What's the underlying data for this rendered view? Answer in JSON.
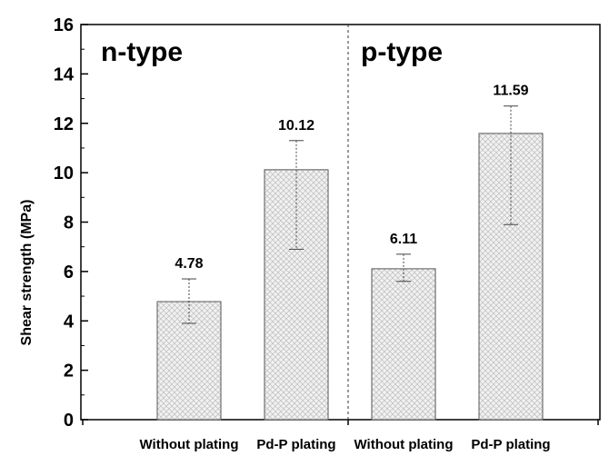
{
  "chart_data": {
    "type": "bar",
    "title": "",
    "xlabel": "",
    "ylabel": "Shear strength (MPa)",
    "ylim": [
      0,
      16
    ],
    "yticks": [
      0,
      2,
      4,
      6,
      8,
      10,
      12,
      14,
      16
    ],
    "grid": false,
    "legend": "none",
    "categories": [
      "Without plating",
      "Pd-P plating",
      "Without plating",
      "Pd-P plating"
    ],
    "values": [
      4.78,
      10.12,
      6.11,
      11.59
    ],
    "value_labels": [
      "4.78",
      "10.12",
      "6.11",
      "11.59"
    ],
    "error_low": [
      3.9,
      6.9,
      5.6,
      7.9
    ],
    "error_high": [
      5.7,
      11.3,
      6.7,
      12.7
    ],
    "groups": [
      {
        "label": "n-type",
        "categories": [
          0,
          1
        ]
      },
      {
        "label": "p-type",
        "categories": [
          2,
          3
        ]
      }
    ],
    "bar_fill": "#ececec",
    "bar_pattern": "crosshatch"
  }
}
